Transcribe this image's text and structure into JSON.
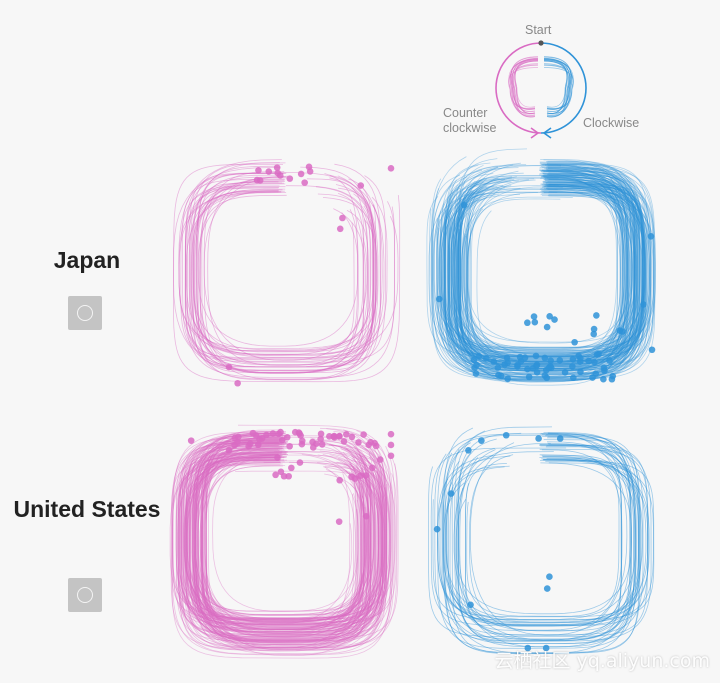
{
  "legend": {
    "start_label": "Start",
    "counter_label": "Counter clockwise",
    "clockwise_label": "Clockwise"
  },
  "rows": [
    {
      "label": "Japan",
      "button_icon": "circle-icon",
      "counter_density": "light",
      "clockwise_density": "heavy"
    },
    {
      "label": "United States",
      "button_icon": "circle-icon",
      "counter_density": "heavy",
      "clockwise_density": "light"
    }
  ],
  "colors": {
    "counter_clockwise": "#d96bc3",
    "clockwise": "#2f93d8",
    "background": "#f7f7f7",
    "button": "#c4c4c4"
  },
  "watermark": "云栖社区 yq.aliyun.com"
}
